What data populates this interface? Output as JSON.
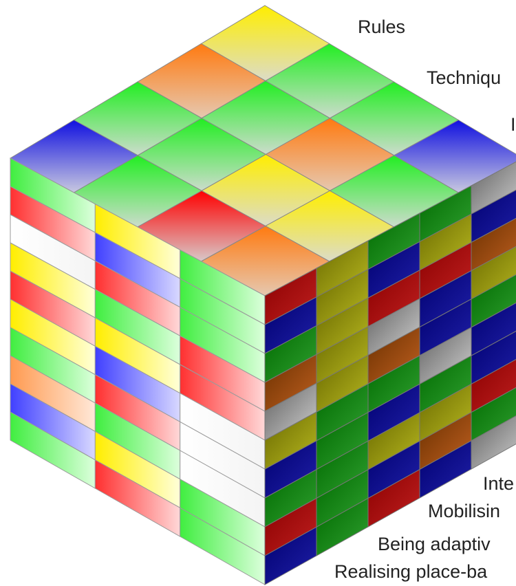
{
  "labels": {
    "top": [
      "Rules",
      "Techniqu",
      "I"
    ],
    "bottom": [
      "Inte",
      "Mobilisin",
      "Being adaptiv",
      "Realising place-ba"
    ]
  }
}
